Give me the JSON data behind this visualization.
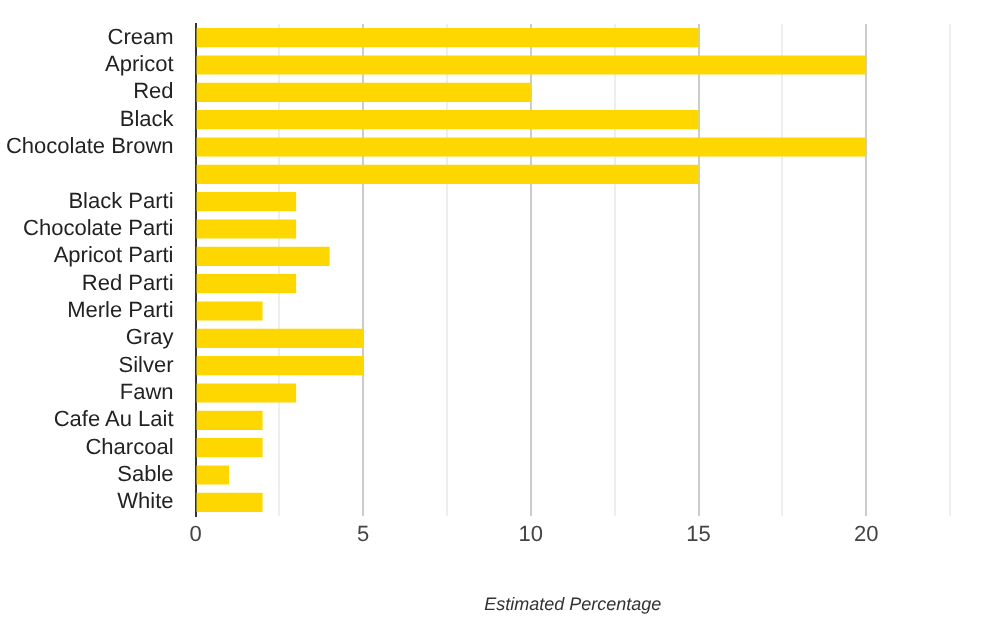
{
  "chart_data": {
    "type": "bar",
    "orientation": "horizontal",
    "xlabel": "Estimated Percentage",
    "categories": [
      "Cream",
      "Apricot",
      "Red",
      "Black",
      "Chocolate Brown",
      null,
      "Black Parti",
      "Chocolate Parti",
      "Apricot Parti",
      "Red Parti",
      "Merle Parti",
      "Gray",
      "Silver",
      "Fawn",
      "Cafe Au Lait",
      "Charcoal",
      "Sable",
      "White"
    ],
    "values": [
      15,
      20,
      10,
      15,
      20,
      15,
      3,
      3,
      4,
      3,
      2,
      5,
      5,
      3,
      2,
      2,
      1,
      2
    ],
    "color": "#ffd700",
    "xlim": [
      0,
      22.5
    ],
    "xticks": [
      0,
      {
        "value": 2.5,
        "label": null
      },
      5,
      {
        "value": 7.5,
        "label": null
      },
      10,
      {
        "value": 12.5,
        "label": null
      },
      15,
      {
        "value": 17.5,
        "label": null
      },
      20,
      {
        "value": 22.5,
        "label": null
      }
    ],
    "grid": "x",
    "legend": false
  }
}
